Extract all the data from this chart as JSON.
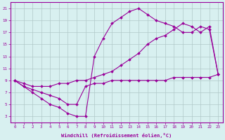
{
  "line1_x": [
    0,
    1,
    2,
    3,
    4,
    5,
    6,
    7,
    8,
    9,
    10,
    11,
    12,
    13,
    14,
    15,
    16,
    17,
    18,
    19,
    20,
    21,
    22,
    23
  ],
  "line1_y": [
    9,
    8,
    7.5,
    7,
    6.5,
    6,
    5,
    5,
    8,
    8.5,
    8.5,
    9,
    9,
    9,
    9,
    9,
    9,
    9,
    9.5,
    9.5,
    9.5,
    9.5,
    9.5,
    10
  ],
  "line2_x": [
    0,
    1,
    2,
    3,
    4,
    5,
    6,
    7,
    8,
    9,
    10,
    11,
    12,
    13,
    14,
    15,
    16,
    17,
    18,
    19,
    20,
    21,
    22,
    23
  ],
  "line2_y": [
    9,
    8,
    7,
    6,
    5,
    4.5,
    3.5,
    3,
    3,
    13,
    16,
    18.5,
    19.5,
    20.5,
    21,
    20,
    19,
    18.5,
    18,
    17,
    17,
    18,
    17.5,
    10
  ],
  "line3_x": [
    0,
    1,
    2,
    3,
    4,
    5,
    6,
    7,
    8,
    9,
    10,
    11,
    12,
    13,
    14,
    15,
    16,
    17,
    18,
    19,
    20,
    21,
    22,
    23
  ],
  "line3_y": [
    9,
    8.5,
    8,
    8,
    8,
    8.5,
    8.5,
    9,
    9,
    9.5,
    10,
    10.5,
    11.5,
    12.5,
    13.5,
    15,
    16,
    16.5,
    17.5,
    18.5,
    18,
    17,
    18,
    10
  ],
  "color": "#990099",
  "bg_color": "#d8f0f0",
  "grid_color": "#b0c8c8",
  "xlabel": "Windchill (Refroidissement éolien,°C)",
  "ylabel_ticks": [
    3,
    5,
    7,
    9,
    11,
    13,
    15,
    17,
    19,
    21
  ],
  "xlim": [
    -0.5,
    23.5
  ],
  "ylim": [
    2,
    22
  ],
  "xticks": [
    0,
    1,
    2,
    3,
    4,
    5,
    6,
    7,
    8,
    9,
    10,
    11,
    12,
    13,
    14,
    15,
    16,
    17,
    18,
    19,
    20,
    21,
    22,
    23
  ],
  "marker": "D",
  "markersize": 2.0,
  "linewidth": 0.8
}
